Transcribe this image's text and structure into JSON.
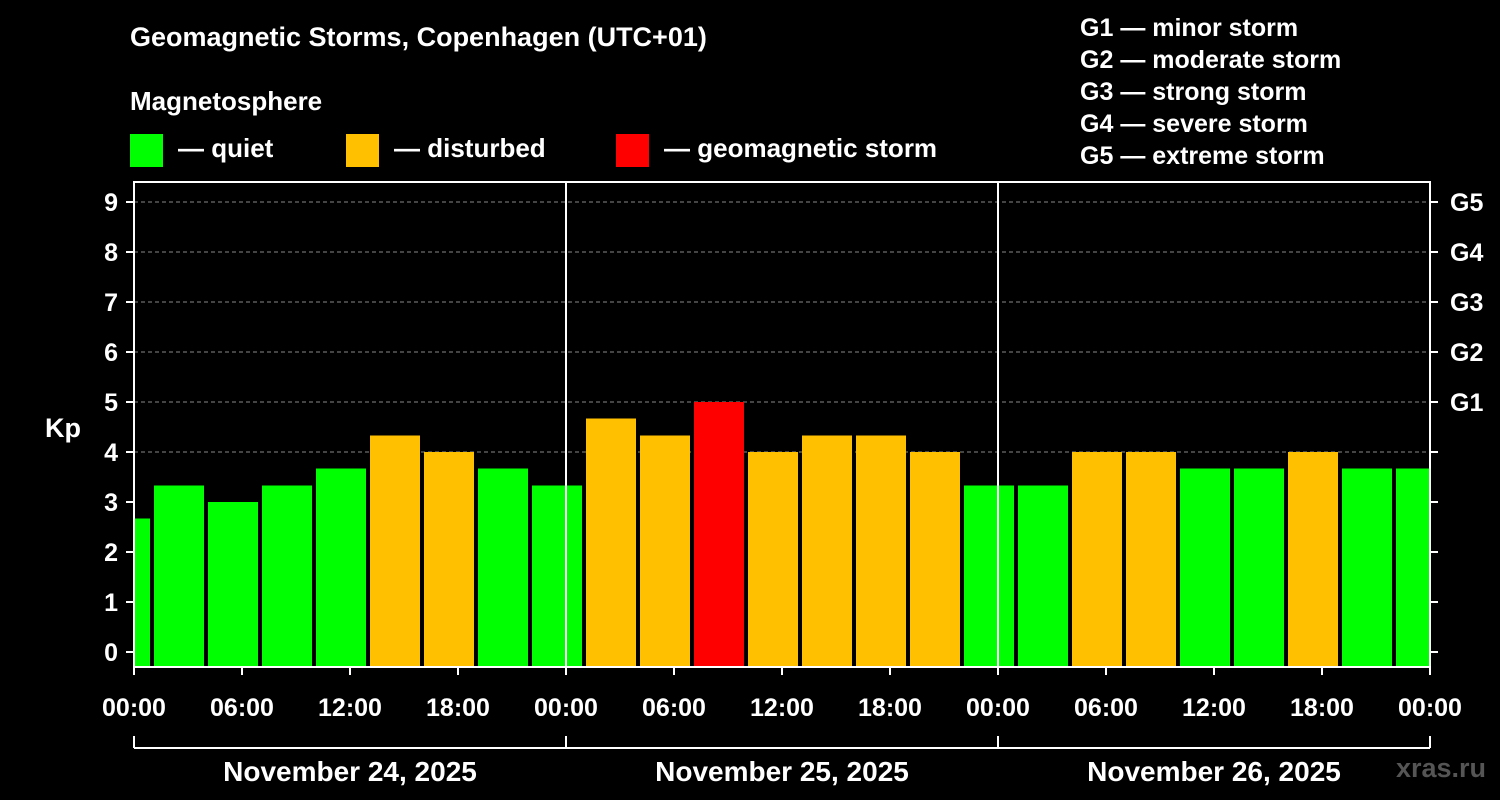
{
  "title": "Geomagnetic Storms, Copenhagen (UTC+01)",
  "magnetosphere": {
    "title": "Magnetosphere",
    "items": [
      {
        "label": "— quiet",
        "color": "#00ff00"
      },
      {
        "label": "— disturbed",
        "color": "#ffc000"
      },
      {
        "label": "— geomagnetic storm",
        "color": "#ff0000"
      }
    ]
  },
  "storm_levels": [
    {
      "code": "G1",
      "desc": "— minor storm"
    },
    {
      "code": "G2",
      "desc": "— moderate storm"
    },
    {
      "code": "G3",
      "desc": "— strong storm"
    },
    {
      "code": "G4",
      "desc": "— severe storm"
    },
    {
      "code": "G5",
      "desc": "— extreme storm"
    }
  ],
  "watermark": "xras.ru",
  "chart_data": {
    "type": "bar",
    "title": "Geomagnetic Storms, Copenhagen (UTC+01)",
    "ylabel": "Kp",
    "ylim": [
      0,
      9
    ],
    "y_ticks": [
      "0",
      "1",
      "2",
      "3",
      "4",
      "5",
      "6",
      "7",
      "8",
      "9"
    ],
    "right_ticks": [
      {
        "value": 5,
        "label": "G1"
      },
      {
        "value": 6,
        "label": "G2"
      },
      {
        "value": 7,
        "label": "G3"
      },
      {
        "value": 8,
        "label": "G4"
      },
      {
        "value": 9,
        "label": "G5"
      }
    ],
    "x_range_hours": [
      0,
      72
    ],
    "x_tick_labels": [
      "00:00",
      "06:00",
      "12:00",
      "18:00",
      "00:00",
      "06:00",
      "12:00",
      "18:00",
      "00:00",
      "06:00",
      "12:00",
      "18:00",
      "00:00"
    ],
    "day_labels": [
      "November 24, 2025",
      "November 25, 2025",
      "November 26, 2025"
    ],
    "bar_start_hours": [
      0,
      1,
      4,
      7,
      10,
      13,
      16,
      19,
      22,
      25,
      28,
      31,
      34,
      37,
      40,
      43,
      46,
      49,
      52,
      55,
      58,
      61,
      64,
      67,
      70
    ],
    "bar_end_hours": [
      1,
      4,
      7,
      10,
      13,
      16,
      19,
      22,
      25,
      28,
      31,
      34,
      37,
      40,
      43,
      46,
      49,
      52,
      55,
      58,
      61,
      64,
      67,
      70,
      72
    ],
    "values": [
      2.67,
      3.33,
      3.0,
      3.33,
      3.67,
      4.33,
      4.0,
      3.67,
      3.33,
      4.67,
      4.33,
      5.0,
      4.0,
      4.33,
      4.33,
      4.0,
      3.33,
      3.33,
      4.0,
      4.0,
      3.67,
      3.67,
      4.0,
      3.67,
      3.67
    ],
    "thresholds": {
      "disturbed": 4,
      "storm": 5
    },
    "colors": {
      "quiet": "#00ff00",
      "disturbed": "#ffc000",
      "storm": "#ff0000"
    },
    "grid": true,
    "legend": "top"
  }
}
